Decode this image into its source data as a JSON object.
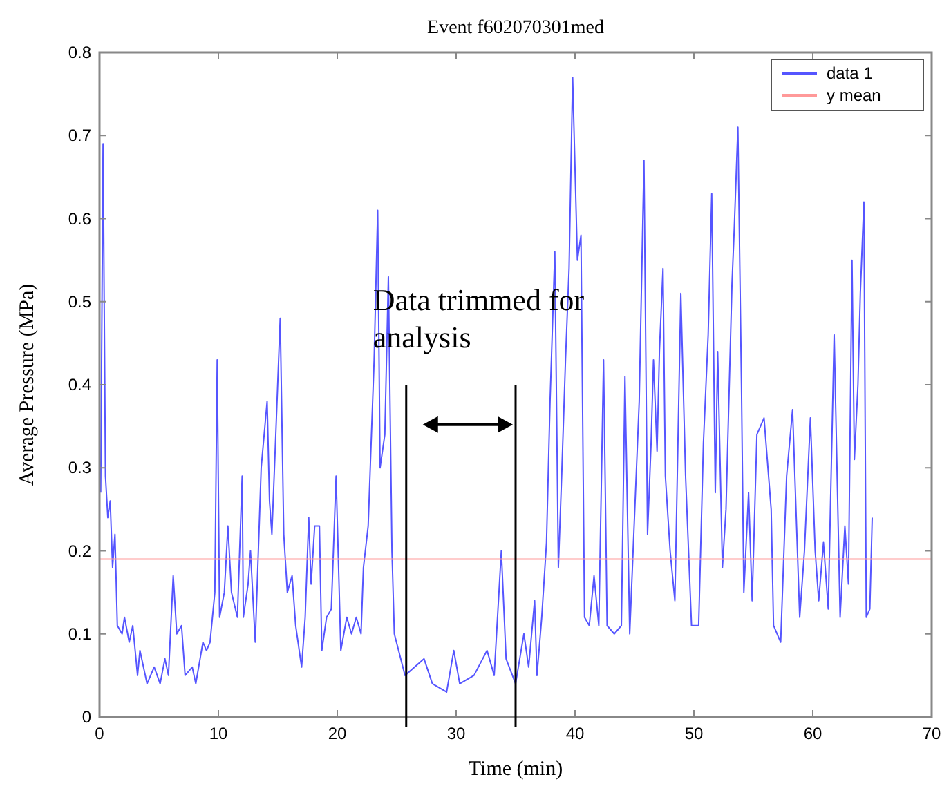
{
  "chart_data": {
    "type": "line",
    "title": "Event f602070301med",
    "xlabel": "Time (min)",
    "ylabel": "Average Pressure (MPa)",
    "xlim": [
      0,
      70
    ],
    "ylim": [
      0,
      0.8
    ],
    "xticks": [
      0,
      10,
      20,
      30,
      40,
      50,
      60,
      70
    ],
    "yticks": [
      0,
      0.1,
      0.2,
      0.3,
      0.4,
      0.5,
      0.6,
      0.7,
      0.8
    ],
    "grid": false,
    "legend": "top right",
    "line_style": "solid",
    "series": [
      {
        "name": "data 1",
        "color": "#5555ff",
        "x": [
          0.1,
          0.3,
          0.5,
          0.7,
          0.9,
          1.1,
          1.3,
          1.5,
          1.9,
          2.1,
          2.5,
          2.8,
          3.2,
          3.4,
          4.0,
          4.6,
          5.1,
          5.5,
          5.8,
          6.2,
          6.5,
          6.9,
          7.2,
          7.8,
          8.1,
          8.7,
          9.0,
          9.3,
          9.7,
          9.9,
          10.1,
          10.5,
          10.8,
          11.1,
          11.6,
          12.0,
          12.1,
          12.5,
          12.7,
          13.1,
          13.6,
          14.1,
          14.3,
          14.5,
          14.8,
          15.2,
          15.5,
          15.8,
          16.2,
          16.5,
          17.0,
          17.3,
          17.6,
          17.8,
          18.1,
          18.5,
          18.7,
          19.1,
          19.5,
          19.9,
          20.3,
          20.8,
          21.2,
          21.6,
          22.0,
          22.2,
          22.6,
          23.1,
          23.4,
          23.6,
          24.0,
          24.3,
          24.6,
          24.8,
          25.7,
          27.3,
          28.0,
          29.2,
          29.8,
          30.3,
          31.5,
          32.6,
          33.2,
          33.8,
          34.2,
          35.0,
          35.7,
          36.1,
          36.6,
          36.8,
          37.2,
          37.6,
          37.9,
          38.3,
          38.6,
          38.9,
          39.2,
          39.5,
          39.8,
          40.2,
          40.5,
          40.8,
          41.2,
          41.6,
          42.0,
          42.4,
          42.7,
          43.3,
          43.9,
          44.2,
          44.6,
          45.4,
          45.8,
          46.1,
          46.4,
          46.6,
          46.9,
          47.1,
          47.4,
          47.6,
          48.0,
          48.4,
          48.9,
          49.3,
          49.8,
          50.4,
          50.8,
          51.2,
          51.5,
          51.8,
          52.0,
          52.4,
          52.7,
          53.2,
          53.4,
          53.7,
          54.0,
          54.2,
          54.6,
          54.9,
          55.3,
          55.9,
          56.5,
          56.7,
          57.3,
          57.8,
          58.3,
          58.9,
          59.3,
          59.8,
          60.2,
          60.5,
          60.9,
          61.3,
          61.8,
          62.3,
          62.7,
          63.0,
          63.3,
          63.5,
          63.8,
          64.0,
          64.3,
          64.5,
          64.8,
          65.0
        ],
        "values": [
          0.27,
          0.69,
          0.29,
          0.24,
          0.26,
          0.18,
          0.22,
          0.11,
          0.1,
          0.12,
          0.09,
          0.11,
          0.05,
          0.08,
          0.04,
          0.06,
          0.04,
          0.07,
          0.05,
          0.17,
          0.1,
          0.11,
          0.05,
          0.06,
          0.04,
          0.09,
          0.08,
          0.09,
          0.15,
          0.43,
          0.12,
          0.15,
          0.23,
          0.15,
          0.12,
          0.29,
          0.12,
          0.16,
          0.2,
          0.09,
          0.3,
          0.38,
          0.26,
          0.22,
          0.33,
          0.48,
          0.22,
          0.15,
          0.17,
          0.11,
          0.06,
          0.12,
          0.24,
          0.16,
          0.23,
          0.23,
          0.08,
          0.12,
          0.13,
          0.29,
          0.08,
          0.12,
          0.1,
          0.12,
          0.1,
          0.18,
          0.23,
          0.43,
          0.61,
          0.3,
          0.34,
          0.53,
          0.2,
          0.1,
          0.05,
          0.07,
          0.04,
          0.03,
          0.08,
          0.04,
          0.05,
          0.08,
          0.05,
          0.2,
          0.07,
          0.04,
          0.1,
          0.06,
          0.14,
          0.05,
          0.12,
          0.21,
          0.38,
          0.56,
          0.18,
          0.3,
          0.43,
          0.54,
          0.77,
          0.55,
          0.58,
          0.12,
          0.11,
          0.17,
          0.11,
          0.43,
          0.11,
          0.1,
          0.11,
          0.41,
          0.1,
          0.38,
          0.67,
          0.22,
          0.33,
          0.43,
          0.32,
          0.44,
          0.54,
          0.29,
          0.2,
          0.14,
          0.51,
          0.29,
          0.11,
          0.11,
          0.33,
          0.46,
          0.63,
          0.27,
          0.44,
          0.18,
          0.25,
          0.52,
          0.59,
          0.71,
          0.4,
          0.15,
          0.27,
          0.14,
          0.34,
          0.36,
          0.25,
          0.11,
          0.09,
          0.29,
          0.37,
          0.12,
          0.2,
          0.36,
          0.2,
          0.14,
          0.21,
          0.13,
          0.46,
          0.12,
          0.23,
          0.16,
          0.55,
          0.31,
          0.4,
          0.51,
          0.62,
          0.12,
          0.13,
          0.24
        ]
      },
      {
        "name": "y mean",
        "color": "#ff9999",
        "x": [
          0,
          70
        ],
        "values": [
          0.19,
          0.19
        ]
      }
    ],
    "ref_lines": [
      {
        "axis": "x",
        "value": 25.8,
        "color": "#000000"
      },
      {
        "axis": "x",
        "value": 35.0,
        "color": "#000000"
      }
    ],
    "annotations": [
      "Data trimmed for analysis"
    ]
  }
}
